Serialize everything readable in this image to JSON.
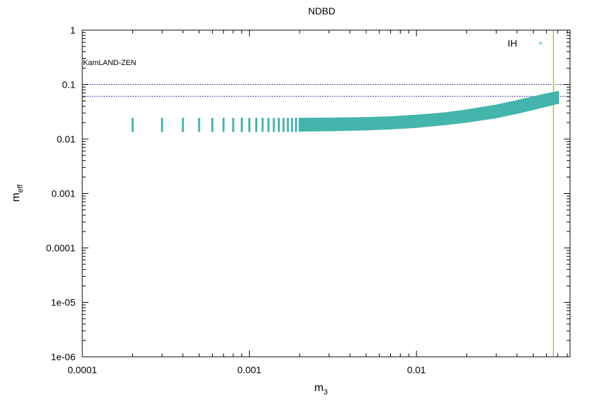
{
  "chart_data": {
    "type": "scatter",
    "title": "NDBD",
    "xlabel": {
      "main": "m",
      "sub": "3"
    },
    "ylabel": {
      "main": "m",
      "sub": "eff"
    },
    "xscale": "log",
    "yscale": "log",
    "xlim": [
      0.0001,
      0.083
    ],
    "ylim": [
      1e-06,
      1
    ],
    "xticks": [
      {
        "value": 0.0001,
        "label": "0.0001"
      },
      {
        "value": 0.001,
        "label": "0.001"
      },
      {
        "value": 0.01,
        "label": "0.01"
      }
    ],
    "yticks": [
      {
        "value": 1,
        "label": "1"
      },
      {
        "value": 0.1,
        "label": "0.1"
      },
      {
        "value": 0.01,
        "label": "0.01"
      },
      {
        "value": 0.001,
        "label": "0.001"
      },
      {
        "value": 0.0001,
        "label": "0.0001"
      },
      {
        "value": 1e-05,
        "label": "1e-05"
      },
      {
        "value": 1e-06,
        "label": "1e-06"
      }
    ],
    "grid": false,
    "legend": {
      "placement": "top-right",
      "entries": [
        {
          "label": "IH",
          "color": "#44b5ad",
          "marker": "+"
        }
      ]
    },
    "series": [
      {
        "name": "IH",
        "color": "#44b5ad",
        "points": [
          {
            "x": 0.0002,
            "ymin": 0.0135,
            "ymax": 0.0245
          },
          {
            "x": 0.0003,
            "ymin": 0.0135,
            "ymax": 0.0245
          },
          {
            "x": 0.0004,
            "ymin": 0.0135,
            "ymax": 0.0245
          },
          {
            "x": 0.0005,
            "ymin": 0.0135,
            "ymax": 0.0245
          },
          {
            "x": 0.0006,
            "ymin": 0.0135,
            "ymax": 0.0245
          },
          {
            "x": 0.0007,
            "ymin": 0.0135,
            "ymax": 0.0245
          },
          {
            "x": 0.0008,
            "ymin": 0.0135,
            "ymax": 0.0245
          },
          {
            "x": 0.0009,
            "ymin": 0.0135,
            "ymax": 0.0245
          },
          {
            "x": 0.001,
            "ymin": 0.0135,
            "ymax": 0.0245
          },
          {
            "x": 0.0011,
            "ymin": 0.0135,
            "ymax": 0.0245
          },
          {
            "x": 0.0012,
            "ymin": 0.0135,
            "ymax": 0.0245
          },
          {
            "x": 0.0013,
            "ymin": 0.0135,
            "ymax": 0.0245
          },
          {
            "x": 0.0014,
            "ymin": 0.0135,
            "ymax": 0.0245
          },
          {
            "x": 0.0015,
            "ymin": 0.0135,
            "ymax": 0.0245
          },
          {
            "x": 0.0016,
            "ymin": 0.0135,
            "ymax": 0.0245
          },
          {
            "x": 0.0017,
            "ymin": 0.0135,
            "ymax": 0.0245
          },
          {
            "x": 0.0018,
            "ymin": 0.0135,
            "ymax": 0.0245
          },
          {
            "x": 0.0019,
            "ymin": 0.0135,
            "ymax": 0.0245
          }
        ],
        "band": [
          {
            "x": 0.002,
            "ymin": 0.0137,
            "ymax": 0.0245
          },
          {
            "x": 0.003,
            "ymin": 0.0139,
            "ymax": 0.0247
          },
          {
            "x": 0.005,
            "ymin": 0.0144,
            "ymax": 0.0253
          },
          {
            "x": 0.007,
            "ymin": 0.015,
            "ymax": 0.0262
          },
          {
            "x": 0.01,
            "ymin": 0.016,
            "ymax": 0.028
          },
          {
            "x": 0.015,
            "ymin": 0.018,
            "ymax": 0.031
          },
          {
            "x": 0.02,
            "ymin": 0.02,
            "ymax": 0.035
          },
          {
            "x": 0.03,
            "ymin": 0.024,
            "ymax": 0.043
          },
          {
            "x": 0.04,
            "ymin": 0.029,
            "ymax": 0.052
          },
          {
            "x": 0.05,
            "ymin": 0.034,
            "ymax": 0.061
          },
          {
            "x": 0.06,
            "ymin": 0.039,
            "ymax": 0.069
          },
          {
            "x": 0.07,
            "ymin": 0.044,
            "ymax": 0.076
          }
        ]
      }
    ],
    "annotations": {
      "kamland_label": "KamLAND-ZEN",
      "hlines": [
        {
          "y": 0.1,
          "style": "dotted",
          "color": "#0000a0"
        },
        {
          "y": 0.061,
          "style": "dotted",
          "color": "#0000a0"
        }
      ],
      "vline": {
        "x": 0.066,
        "color": "#c8a200"
      }
    }
  }
}
